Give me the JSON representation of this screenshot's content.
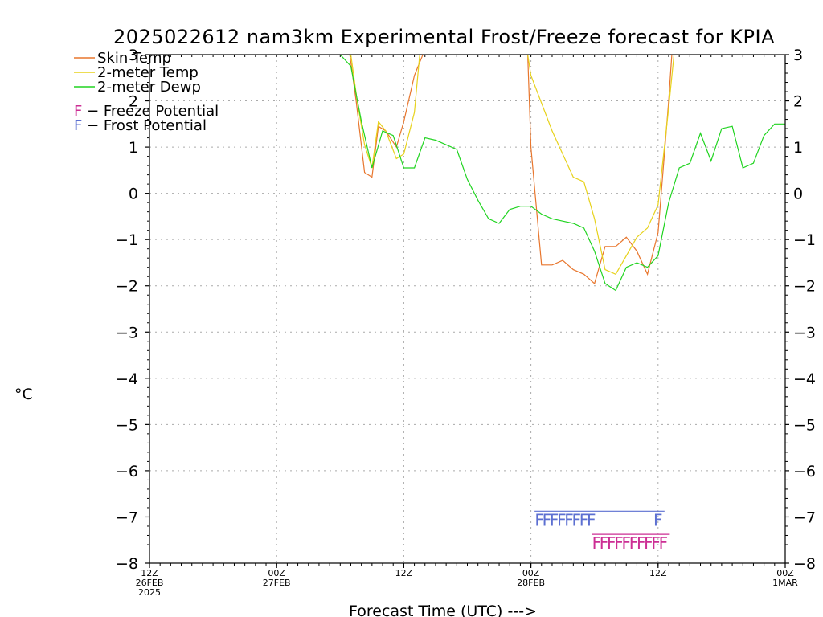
{
  "chart_data": {
    "type": "line",
    "title": "2025022612 nam3km Experimental Frost/Freeze forecast for KPIA",
    "xlabel": "Forecast Time (UTC) --->",
    "ylabel_left": "°C",
    "ylim": [
      -8,
      3
    ],
    "yticks": [
      -8,
      -7,
      -6,
      -5,
      -4,
      -3,
      -2,
      -1,
      0,
      1,
      2,
      3
    ],
    "yticks_left_labels": [
      "−8",
      "−7",
      "−6",
      "−5",
      "−4",
      "−3",
      "−2",
      "−1",
      "0",
      "1",
      "2",
      "3"
    ],
    "yticks_right_labels": [
      "−8",
      "−7",
      "−6",
      "−5",
      "−4",
      "−3",
      "−2",
      "−1",
      "0",
      "1",
      "2",
      "3"
    ],
    "xlim_hours": [
      0,
      60
    ],
    "xticks": [
      {
        "hour": 0,
        "lines": [
          "12Z",
          "26FEB",
          "2025"
        ]
      },
      {
        "hour": 12,
        "lines": [
          "00Z",
          "27FEB"
        ]
      },
      {
        "hour": 24,
        "lines": [
          "12Z"
        ]
      },
      {
        "hour": 36,
        "lines": [
          "00Z",
          "28FEB"
        ]
      },
      {
        "hour": 48,
        "lines": [
          "12Z"
        ]
      },
      {
        "hour": 60,
        "lines": [
          "00Z",
          "1MAR"
        ]
      }
    ],
    "grid": true,
    "legend_position": "top-left",
    "series": [
      {
        "name": "Skin Temp",
        "color": "#e8762d",
        "x": [
          18.9,
          19.5,
          20.3,
          21.0,
          21.6,
          22.3,
          23.3,
          24.0,
          25.0,
          25.8,
          26.7,
          27.2,
          35.7,
          36.0,
          37.0,
          38.0,
          39.0,
          40.0,
          41.0,
          42.0,
          43.0,
          44.0,
          45.0,
          46.0,
          47.0,
          48.0,
          49.0,
          49.3
        ],
        "y": [
          3.0,
          2.0,
          0.45,
          0.35,
          1.45,
          1.35,
          1.0,
          1.55,
          2.55,
          3.0,
          3.0,
          3.0,
          3.0,
          1.0,
          -1.55,
          -1.55,
          -1.45,
          -1.65,
          -1.75,
          -1.95,
          -1.15,
          -1.15,
          -0.95,
          -1.25,
          -1.75,
          -0.85,
          2.0,
          3.0
        ]
      },
      {
        "name": "2-meter Temp",
        "color": "#e7d21c",
        "x": [
          19.0,
          19.6,
          20.3,
          21.0,
          21.6,
          22.3,
          23.3,
          24.0,
          25.0,
          25.5,
          26.0,
          27.0,
          35.7,
          36.0,
          37.0,
          38.0,
          39.0,
          40.0,
          41.0,
          42.0,
          43.0,
          44.0,
          45.0,
          46.0,
          47.0,
          48.0,
          49.0,
          49.5
        ],
        "y": [
          3.0,
          2.0,
          1.05,
          0.55,
          1.55,
          1.35,
          0.75,
          0.85,
          1.75,
          3.0,
          3.0,
          3.0,
          3.0,
          2.55,
          1.95,
          1.35,
          0.85,
          0.35,
          0.25,
          -0.55,
          -1.65,
          -1.75,
          -1.35,
          -0.95,
          -0.75,
          -0.25,
          1.85,
          3.0
        ]
      },
      {
        "name": "2-meter Dewp",
        "color": "#21d421",
        "x": [
          0.0,
          1.0,
          2.0,
          3.0,
          4.0,
          5.0,
          6.0,
          7.0,
          8.0,
          9.0,
          10.0,
          11.0,
          12.0,
          13.0,
          14.0,
          15.0,
          16.0,
          17.0,
          18.0,
          19.0,
          20.0,
          21.0,
          22.0,
          23.0,
          24.0,
          25.0,
          26.0,
          27.0,
          28.0,
          29.0,
          30.0,
          31.0,
          32.0,
          33.0,
          34.0,
          35.0,
          36.0,
          37.0,
          38.0,
          39.0,
          40.0,
          41.0,
          42.0,
          43.0,
          44.0,
          45.0,
          46.0,
          47.0,
          48.0,
          49.0,
          50.0,
          51.0,
          52.0,
          53.0,
          54.0,
          55.0,
          56.0,
          57.0,
          58.0,
          59.0,
          60.0
        ],
        "y": [
          3.0,
          3.0,
          3.0,
          3.0,
          3.0,
          3.0,
          3.0,
          3.0,
          3.0,
          3.0,
          3.0,
          3.0,
          3.0,
          3.0,
          3.0,
          3.0,
          3.0,
          3.0,
          3.0,
          2.75,
          1.55,
          0.55,
          1.35,
          1.25,
          0.55,
          0.55,
          1.2,
          1.15,
          1.05,
          0.95,
          0.3,
          -0.15,
          -0.55,
          -0.65,
          -0.35,
          -0.28,
          -0.28,
          -0.45,
          -0.55,
          -0.6,
          -0.65,
          -0.75,
          -1.25,
          -1.95,
          -2.1,
          -1.6,
          -1.5,
          -1.6,
          -1.35,
          -0.2,
          0.55,
          0.65,
          1.3,
          0.7,
          1.4,
          1.45,
          0.55,
          0.65,
          1.25,
          1.5,
          1.5
        ]
      }
    ],
    "potential_legend": [
      {
        "prefix": "F",
        "text": " − Freeze Potential",
        "color": "#cc2e94"
      },
      {
        "prefix": "F",
        "text": " − Frost Potential",
        "color": "#5c6fd1"
      }
    ],
    "frost_markers": {
      "color": "#5c6fd1",
      "y": -7.05,
      "label": "F",
      "hours": [
        36.8,
        37.5,
        38.2,
        38.9,
        39.6,
        40.3,
        41.0,
        41.7,
        48.0
      ]
    },
    "freeze_markers": {
      "color": "#cc2e94",
      "y": -7.55,
      "label": "F",
      "hours": [
        42.2,
        42.9,
        43.6,
        44.3,
        45.0,
        45.7,
        46.4,
        47.1,
        47.8,
        48.5
      ]
    }
  }
}
